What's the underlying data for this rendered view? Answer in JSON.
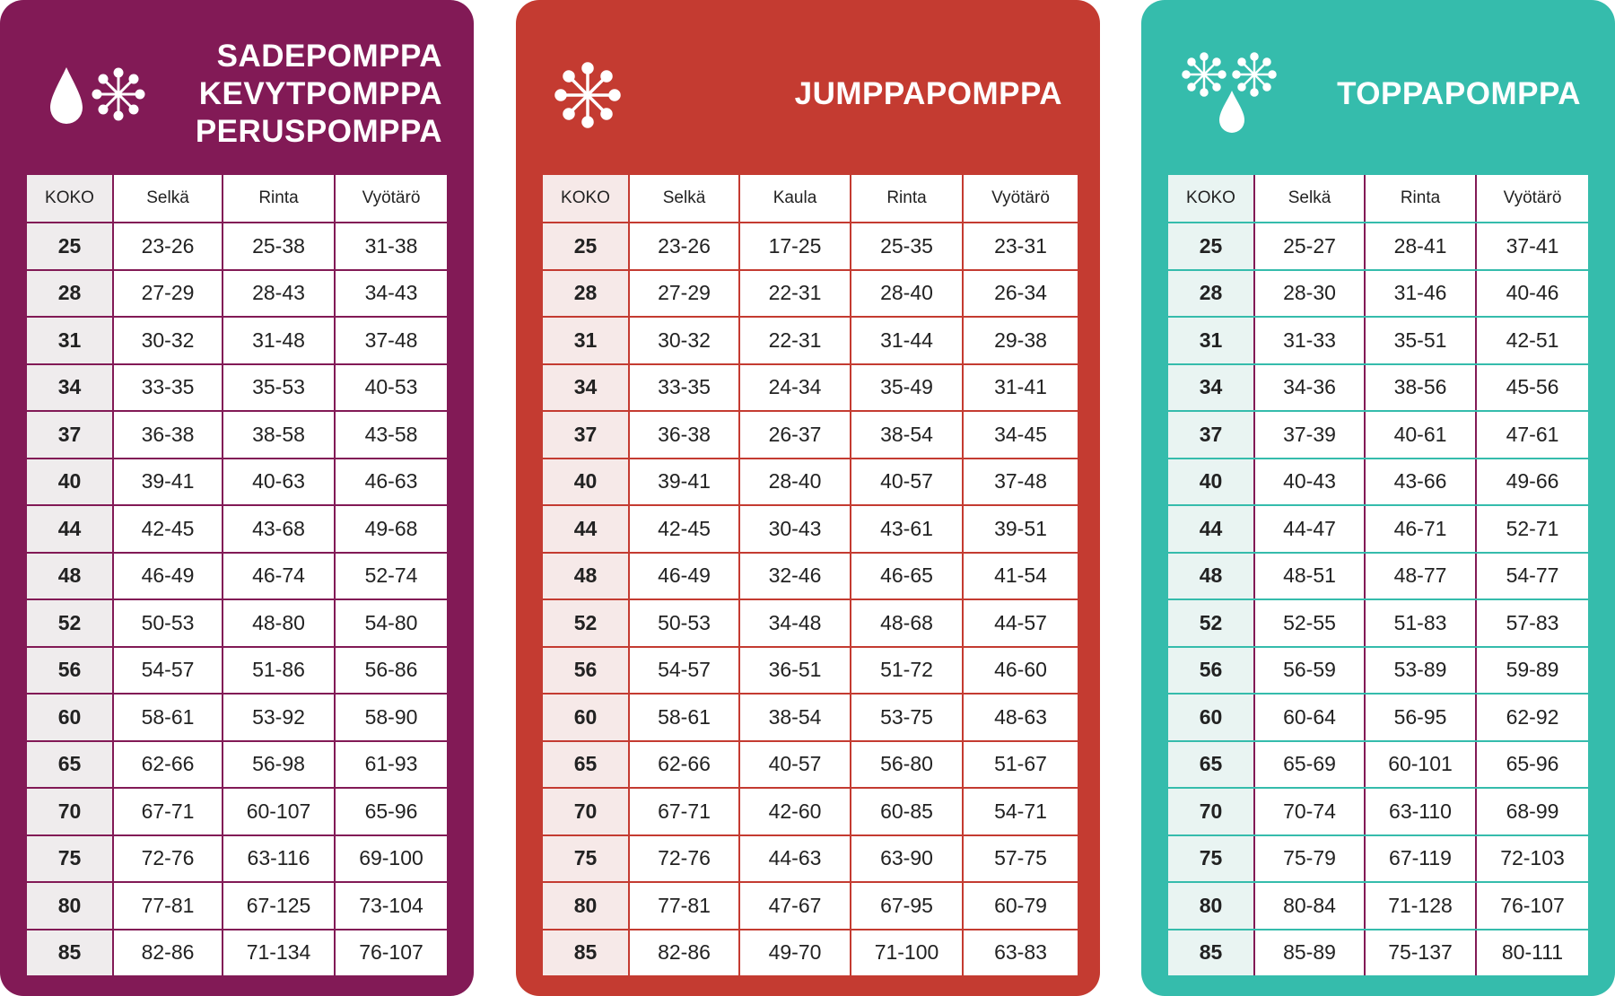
{
  "colors": {
    "purple": "#821a56",
    "red": "#c43b31",
    "teal": "#35bcac"
  },
  "panels": [
    {
      "titles": [
        "SADEPOMPPA",
        "KEVYTPOMPPA",
        "PERUSPOMPPA"
      ],
      "icons": [
        "drop-icon",
        "snowflake-icon"
      ],
      "headers": [
        "KOKO",
        "Selkä",
        "Rinta",
        "Vyötärö"
      ],
      "rows": [
        [
          "25",
          "23-26",
          "25-38",
          "31-38"
        ],
        [
          "28",
          "27-29",
          "28-43",
          "34-43"
        ],
        [
          "31",
          "30-32",
          "31-48",
          "37-48"
        ],
        [
          "34",
          "33-35",
          "35-53",
          "40-53"
        ],
        [
          "37",
          "36-38",
          "38-58",
          "43-58"
        ],
        [
          "40",
          "39-41",
          "40-63",
          "46-63"
        ],
        [
          "44",
          "42-45",
          "43-68",
          "49-68"
        ],
        [
          "48",
          "46-49",
          "46-74",
          "52-74"
        ],
        [
          "52",
          "50-53",
          "48-80",
          "54-80"
        ],
        [
          "56",
          "54-57",
          "51-86",
          "56-86"
        ],
        [
          "60",
          "58-61",
          "53-92",
          "58-90"
        ],
        [
          "65",
          "62-66",
          "56-98",
          "61-93"
        ],
        [
          "70",
          "67-71",
          "60-107",
          "65-96"
        ],
        [
          "75",
          "72-76",
          "63-116",
          "69-100"
        ],
        [
          "80",
          "77-81",
          "67-125",
          "73-104"
        ],
        [
          "85",
          "82-86",
          "71-134",
          "76-107"
        ]
      ]
    },
    {
      "titles": [
        "JUMPPAPOMPPA"
      ],
      "icons": [
        "snowflake-icon"
      ],
      "headers": [
        "KOKO",
        "Selkä",
        "Kaula",
        "Rinta",
        "Vyötärö"
      ],
      "rows": [
        [
          "25",
          "23-26",
          "17-25",
          "25-35",
          "23-31"
        ],
        [
          "28",
          "27-29",
          "22-31",
          "28-40",
          "26-34"
        ],
        [
          "31",
          "30-32",
          "22-31",
          "31-44",
          "29-38"
        ],
        [
          "34",
          "33-35",
          "24-34",
          "35-49",
          "31-41"
        ],
        [
          "37",
          "36-38",
          "26-37",
          "38-54",
          "34-45"
        ],
        [
          "40",
          "39-41",
          "28-40",
          "40-57",
          "37-48"
        ],
        [
          "44",
          "42-45",
          "30-43",
          "43-61",
          "39-51"
        ],
        [
          "48",
          "46-49",
          "32-46",
          "46-65",
          "41-54"
        ],
        [
          "52",
          "50-53",
          "34-48",
          "48-68",
          "44-57"
        ],
        [
          "56",
          "54-57",
          "36-51",
          "51-72",
          "46-60"
        ],
        [
          "60",
          "58-61",
          "38-54",
          "53-75",
          "48-63"
        ],
        [
          "65",
          "62-66",
          "40-57",
          "56-80",
          "51-67"
        ],
        [
          "70",
          "67-71",
          "42-60",
          "60-85",
          "54-71"
        ],
        [
          "75",
          "72-76",
          "44-63",
          "63-90",
          "57-75"
        ],
        [
          "80",
          "77-81",
          "47-67",
          "67-95",
          "60-79"
        ],
        [
          "85",
          "82-86",
          "49-70",
          "71-100",
          "63-83"
        ]
      ]
    },
    {
      "titles": [
        "TOPPAPOMPPA"
      ],
      "icons": [
        "snowflake-icon",
        "snowflake-icon",
        "drop-icon"
      ],
      "headers": [
        "KOKO",
        "Selkä",
        "Rinta",
        "Vyötärö"
      ],
      "rows": [
        [
          "25",
          "25-27",
          "28-41",
          "37-41"
        ],
        [
          "28",
          "28-30",
          "31-46",
          "40-46"
        ],
        [
          "31",
          "31-33",
          "35-51",
          "42-51"
        ],
        [
          "34",
          "34-36",
          "38-56",
          "45-56"
        ],
        [
          "37",
          "37-39",
          "40-61",
          "47-61"
        ],
        [
          "40",
          "40-43",
          "43-66",
          "49-66"
        ],
        [
          "44",
          "44-47",
          "46-71",
          "52-71"
        ],
        [
          "48",
          "48-51",
          "48-77",
          "54-77"
        ],
        [
          "52",
          "52-55",
          "51-83",
          "57-83"
        ],
        [
          "56",
          "56-59",
          "53-89",
          "59-89"
        ],
        [
          "60",
          "60-64",
          "56-95",
          "62-92"
        ],
        [
          "65",
          "65-69",
          "60-101",
          "65-96"
        ],
        [
          "70",
          "70-74",
          "63-110",
          "68-99"
        ],
        [
          "75",
          "75-79",
          "67-119",
          "72-103"
        ],
        [
          "80",
          "80-84",
          "71-128",
          "76-107"
        ],
        [
          "85",
          "85-89",
          "75-137",
          "80-111"
        ]
      ]
    }
  ]
}
